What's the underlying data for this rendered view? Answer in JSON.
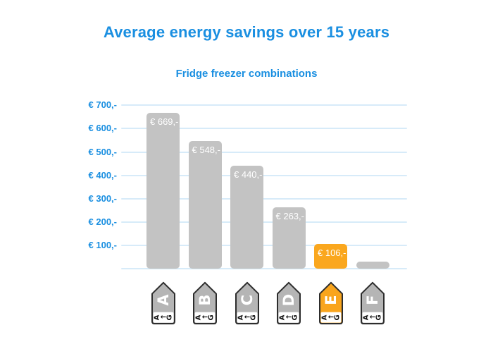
{
  "header": {
    "title": "Average energy savings over 15 years",
    "subtitle": "Fridge freezer combinations"
  },
  "chart_data": {
    "type": "bar",
    "title": "Average energy savings over 15 years",
    "subtitle": "Fridge freezer combinations",
    "categories": [
      "A",
      "B",
      "C",
      "D",
      "E",
      "F"
    ],
    "values": [
      669,
      548,
      440,
      263,
      106,
      30
    ],
    "bar_labels": [
      "€ 669,-",
      "€ 548,-",
      "€ 440,-",
      "€ 263,-",
      "€ 106,-",
      ""
    ],
    "highlight_index": 4,
    "y_ticks": [
      {
        "value": 700,
        "label": "€ 700,-"
      },
      {
        "value": 600,
        "label": "€ 600,-"
      },
      {
        "value": 500,
        "label": "€ 500,-"
      },
      {
        "value": 400,
        "label": "€ 400,-"
      },
      {
        "value": 300,
        "label": "€ 300,-"
      },
      {
        "value": 200,
        "label": "€ 200,-"
      },
      {
        "value": 100,
        "label": "€ 100,-"
      }
    ],
    "ylim": [
      0,
      700
    ],
    "grid": "horizontal",
    "legend_position": "none",
    "x_axis": "EU energy efficiency class tags A to F",
    "note": "F bar carries no data label; value estimated from gridlines"
  },
  "energy_tags": {
    "scale_start": "A",
    "scale_arrow": "←",
    "scale_end": "G",
    "classes": [
      {
        "letter": "A",
        "highlighted": false
      },
      {
        "letter": "B",
        "highlighted": false
      },
      {
        "letter": "C",
        "highlighted": false
      },
      {
        "letter": "D",
        "highlighted": false
      },
      {
        "letter": "E",
        "highlighted": true
      },
      {
        "letter": "F",
        "highlighted": false
      }
    ]
  },
  "colors": {
    "title_blue": "#1a8fe1",
    "grid_blue": "#d7ebf9",
    "bar_gray": "#c3c3c3",
    "bar_orange": "#faa71e",
    "tag_gray": "#b5b5b5",
    "tag_orange": "#f9a51d",
    "tag_border": "#2d2d2d",
    "bar_label_white": "#ffffff"
  }
}
